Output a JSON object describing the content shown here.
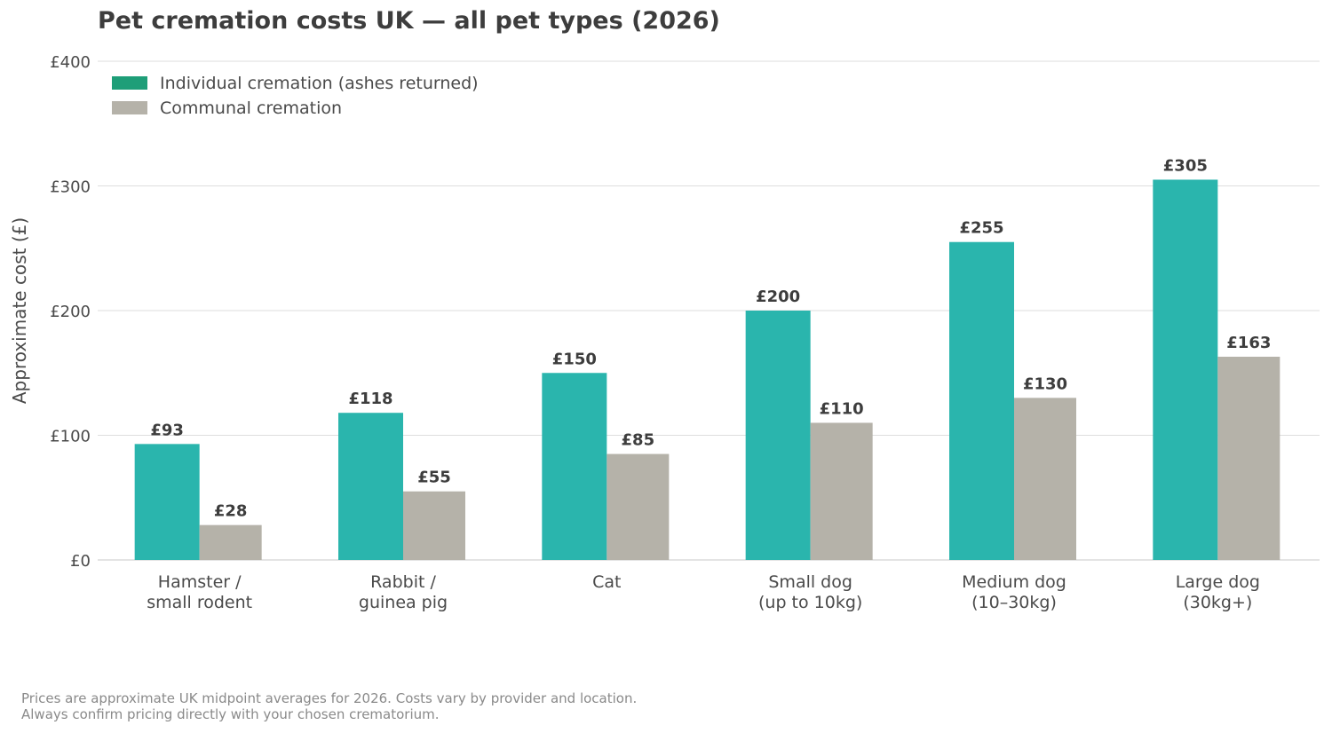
{
  "chart_data": {
    "type": "bar",
    "title": "Pet cremation costs UK — all pet types (2026)",
    "ylabel": "Approximate cost (£)",
    "xlabel": "",
    "ylim": [
      0,
      400
    ],
    "yticks": [
      0,
      100,
      200,
      300,
      400
    ],
    "ytick_labels": [
      "£0",
      "£100",
      "£200",
      "£300",
      "£400"
    ],
    "grid": "horizontal",
    "legend_position": "top-left",
    "categories": [
      [
        "Hamster /",
        "small rodent"
      ],
      [
        "Rabbit /",
        "guinea pig"
      ],
      [
        "Cat"
      ],
      [
        "Small dog",
        "(up to 10kg)"
      ],
      [
        "Medium dog",
        "(10–30kg)"
      ],
      [
        "Large dog",
        "(30kg+)"
      ]
    ],
    "series": [
      {
        "name": "Individual cremation (ashes returned)",
        "color": "#2ab5ad",
        "legend_color": "#1e9e78",
        "values": [
          93,
          118,
          150,
          200,
          255,
          305
        ],
        "labels": [
          "£93",
          "£118",
          "£150",
          "£200",
          "£255",
          "£305"
        ]
      },
      {
        "name": "Communal cremation",
        "color": "#b5b2a9",
        "legend_color": "#b5b2a9",
        "values": [
          28,
          55,
          85,
          110,
          130,
          163
        ],
        "labels": [
          "£28",
          "£55",
          "£85",
          "£110",
          "£130",
          "£163"
        ]
      }
    ]
  },
  "footnote": {
    "line1": "Prices are approximate UK midpoint averages for 2026. Costs vary by provider and location.",
    "line2": "Always confirm pricing directly with your chosen crematorium."
  }
}
